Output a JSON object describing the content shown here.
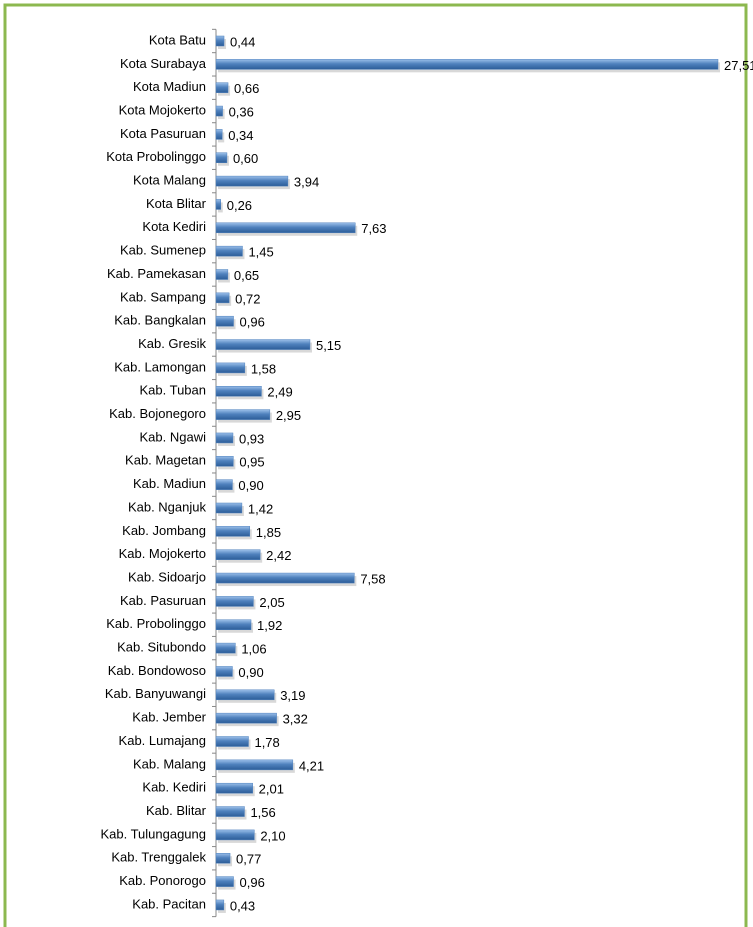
{
  "chart_data": {
    "type": "bar",
    "orientation": "horizontal",
    "color": "#4f81bd",
    "categories": [
      "Kota Batu",
      "Kota Surabaya",
      "Kota Madiun",
      "Kota Mojokerto",
      "Kota Pasuruan",
      "Kota Probolinggo",
      "Kota Malang",
      "Kota Blitar",
      "Kota Kediri",
      "Kab. Sumenep",
      "Kab. Pamekasan",
      "Kab. Sampang",
      "Kab. Bangkalan",
      "Kab. Gresik",
      "Kab. Lamongan",
      "Kab. Tuban",
      "Kab. Bojonegoro",
      "Kab. Ngawi",
      "Kab. Magetan",
      "Kab. Madiun",
      "Kab. Nganjuk",
      "Kab. Jombang",
      "Kab. Mojokerto",
      "Kab. Sidoarjo",
      "Kab. Pasuruan",
      "Kab. Probolinggo",
      "Kab. Situbondo",
      "Kab. Bondowoso",
      "Kab. Banyuwangi",
      "Kab. Jember",
      "Kab. Lumajang",
      "Kab. Malang",
      "Kab. Kediri",
      "Kab. Blitar",
      "Kab. Tulungagung",
      "Kab. Trenggalek",
      "Kab. Ponorogo",
      "Kab. Pacitan"
    ],
    "values": [
      0.44,
      27.51,
      0.66,
      0.36,
      0.34,
      0.6,
      3.94,
      0.26,
      7.63,
      1.45,
      0.65,
      0.72,
      0.96,
      5.15,
      1.58,
      2.49,
      2.95,
      0.93,
      0.95,
      0.9,
      1.42,
      1.85,
      2.42,
      7.58,
      2.05,
      1.92,
      1.06,
      0.9,
      3.19,
      3.32,
      1.78,
      4.21,
      2.01,
      1.56,
      2.1,
      0.77,
      0.96,
      0.43
    ],
    "value_labels": [
      "0,44",
      "27,51",
      "0,66",
      "0,36",
      "0,34",
      "0,60",
      "3,94",
      "0,26",
      "7,63",
      "1,45",
      "0,65",
      "0,72",
      "0,96",
      "5,15",
      "1,58",
      "2,49",
      "2,95",
      "0,93",
      "0,95",
      "0,90",
      "1,42",
      "1,85",
      "2,42",
      "7,58",
      "2,05",
      "1,92",
      "1,06",
      "0,90",
      "3,19",
      "3,32",
      "1,78",
      "4,21",
      "2,01",
      "1,56",
      "2,10",
      "0,77",
      "0,96",
      "0,43"
    ]
  }
}
